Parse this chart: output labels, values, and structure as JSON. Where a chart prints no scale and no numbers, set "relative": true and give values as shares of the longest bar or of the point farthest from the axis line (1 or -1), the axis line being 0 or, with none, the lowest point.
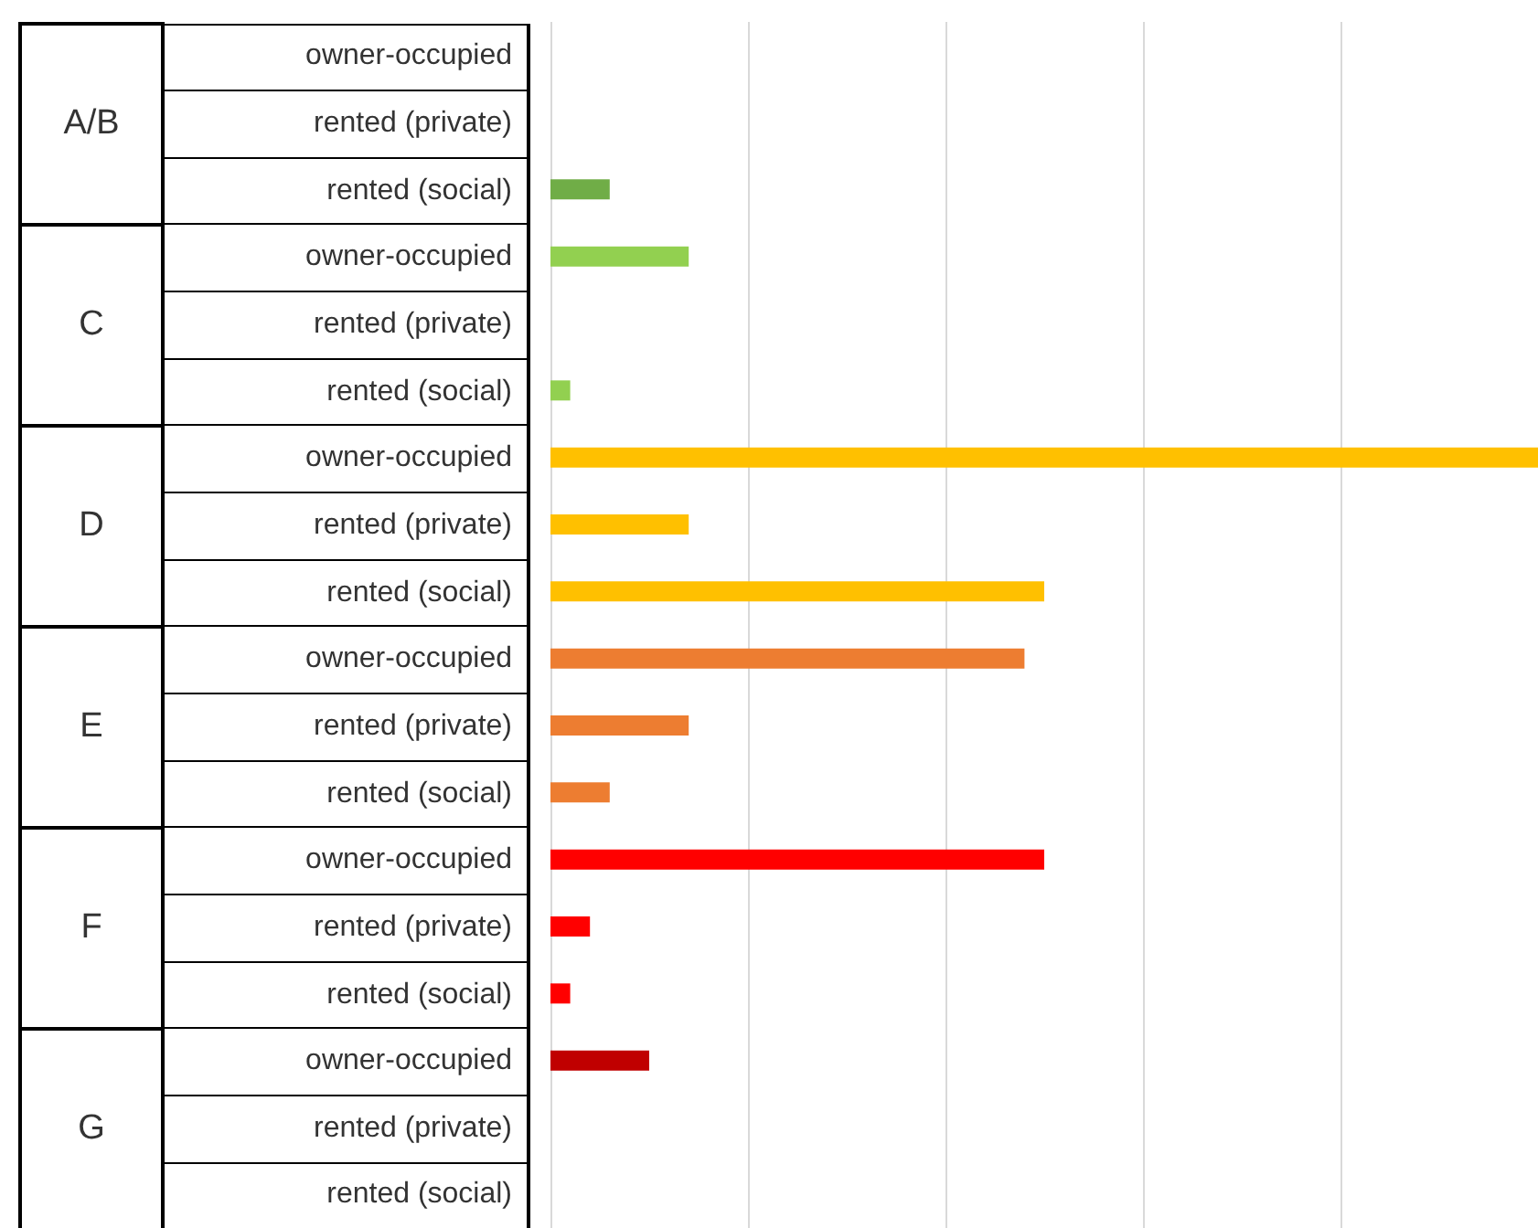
{
  "chart_data": {
    "type": "bar",
    "orientation": "horizontal",
    "relative": true,
    "grid": "x",
    "categories": [
      "owner-occupied",
      "rented (private)",
      "rented (social)",
      "owner-occupied",
      "rented (private)",
      "rented (social)",
      "owner-occupied",
      "rented (private)",
      "rented (social)",
      "owner-occupied",
      "rented (private)",
      "rented (social)",
      "owner-occupied",
      "rented (private)",
      "rented (social)",
      "owner-occupied",
      "rented (private)",
      "rented (social)"
    ],
    "annotations": [
      "A/B",
      "C",
      "D",
      "E",
      "F",
      "G"
    ],
    "values": [
      null,
      null,
      0.06,
      0.14,
      null,
      0.02,
      1,
      0.14,
      0.5,
      0.48,
      0.14,
      0.06,
      0.5,
      0.04,
      0.02,
      0.1,
      null,
      null
    ],
    "colors": [
      "#70ad47",
      "#70ad47",
      "#70ad47",
      "#92d050",
      "#92d050",
      "#92d050",
      "#ffc000",
      "#ffc000",
      "#ffc000",
      "#ed7d31",
      "#ed7d31",
      "#ed7d31",
      "#ff0000",
      "#ff0000",
      "#ff0000",
      "#c00000",
      "#c00000",
      "#c00000"
    ]
  }
}
